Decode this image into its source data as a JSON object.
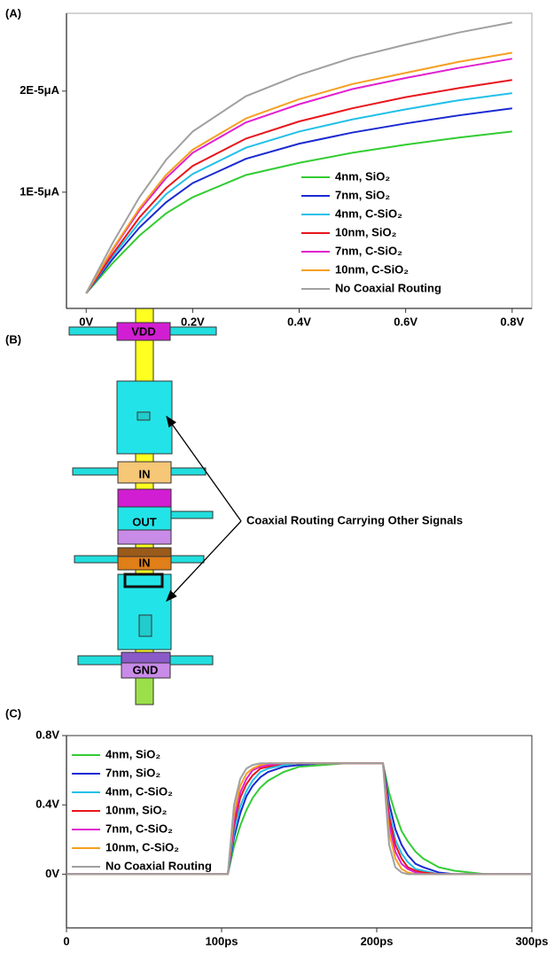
{
  "panel_labels": [
    "(A)",
    "(B)",
    "(C)"
  ],
  "chart_data": [
    {
      "type": "line",
      "legend": "lower right",
      "x": [
        0,
        0.05,
        0.1,
        0.15,
        0.2,
        0.3,
        0.4,
        0.5,
        0.6,
        0.7,
        0.8
      ],
      "xlim": [
        -0.037,
        0.837
      ],
      "xticks": [
        {
          "value": 0,
          "label": "0V"
        },
        {
          "value": 0.2,
          "label": "0.2V"
        },
        {
          "value": 0.4,
          "label": "0.4V"
        },
        {
          "value": 0.6,
          "label": "0.6V"
        },
        {
          "value": 0.8,
          "label": "0.8V"
        }
      ],
      "ylim": [
        -1.5e-06,
        2.77e-05
      ],
      "yticks": [
        {
          "value": 1e-05,
          "label": "1E-5μA"
        },
        {
          "value": 2e-05,
          "label": "2E-5μA"
        }
      ],
      "series": [
        {
          "name": "4nm, SiO₂",
          "color": "#33cc33",
          "values": [
            0,
            3e-06,
            5.7e-06,
            7.9e-06,
            9.5e-06,
            1.17e-05,
            1.29e-05,
            1.39e-05,
            1.47e-05,
            1.54e-05,
            1.6e-05
          ]
        },
        {
          "name": "7nm, SiO₂",
          "color": "#1a2ad0",
          "values": [
            0,
            3.4e-06,
            6.5e-06,
            9e-06,
            1.09e-05,
            1.33e-05,
            1.48e-05,
            1.59e-05,
            1.68e-05,
            1.76e-05,
            1.83e-05
          ]
        },
        {
          "name": "4nm, C-SiO₂",
          "color": "#22c0e8",
          "values": [
            0,
            3.7e-06,
            7e-06,
            9.8e-06,
            1.18e-05,
            1.44e-05,
            1.6e-05,
            1.72e-05,
            1.82e-05,
            1.91e-05,
            1.98e-05
          ]
        },
        {
          "name": "10nm, SiO₂",
          "color": "#e8161c",
          "values": [
            0,
            3.9e-06,
            7.5e-06,
            1.04e-05,
            1.26e-05,
            1.53e-05,
            1.7e-05,
            1.83e-05,
            1.94e-05,
            2.03e-05,
            2.11e-05
          ]
        },
        {
          "name": "7nm, C-SiO₂",
          "color": "#e020d0",
          "values": [
            0,
            4.3e-06,
            8.2e-06,
            1.14e-05,
            1.39e-05,
            1.69e-05,
            1.87e-05,
            2.02e-05,
            2.13e-05,
            2.23e-05,
            2.32e-05
          ]
        },
        {
          "name": "10nm, C-SiO₂",
          "color": "#f5a020",
          "values": [
            0,
            4.4e-06,
            8.4e-06,
            1.17e-05,
            1.42e-05,
            1.73e-05,
            1.92e-05,
            2.07e-05,
            2.18e-05,
            2.29e-05,
            2.38e-05
          ]
        },
        {
          "name": "No Coaxial Routing",
          "color": "#a0a0a0",
          "values": [
            0,
            5e-06,
            9.5e-06,
            1.32e-05,
            1.6e-05,
            1.95e-05,
            2.16e-05,
            2.33e-05,
            2.46e-05,
            2.58e-05,
            2.68e-05
          ]
        }
      ]
    },
    {
      "type": "line",
      "legend": "upper left",
      "x": [
        0,
        104,
        108,
        112,
        116,
        120,
        125,
        130,
        140,
        150,
        165,
        180,
        204,
        208,
        212,
        216,
        220,
        225,
        230,
        240,
        250,
        270,
        300
      ],
      "xlim": [
        0,
        300
      ],
      "xticks": [
        0,
        {
          "value": 100,
          "label": "100ps"
        },
        {
          "value": 200,
          "label": "200ps"
        },
        {
          "value": 300,
          "label": "300ps"
        }
      ],
      "ylim": [
        -0.31,
        0.8
      ],
      "yticks": [
        {
          "value": 0,
          "label": "0V"
        },
        {
          "value": 0.4,
          "label": "0.4V"
        },
        {
          "value": 0.8,
          "label": "0.8V"
        }
      ],
      "series": [
        {
          "name": "4nm, SiO₂",
          "color": "#33cc33",
          "values": [
            0,
            0,
            0.16,
            0.28,
            0.37,
            0.44,
            0.5,
            0.54,
            0.59,
            0.62,
            0.63,
            0.64,
            0.64,
            0.47,
            0.35,
            0.25,
            0.19,
            0.13,
            0.09,
            0.04,
            0.02,
            0,
            0
          ]
        },
        {
          "name": "7nm, SiO₂",
          "color": "#1a2ad0",
          "values": [
            0,
            0,
            0.21,
            0.35,
            0.45,
            0.51,
            0.56,
            0.59,
            0.62,
            0.63,
            0.64,
            0.64,
            0.64,
            0.41,
            0.26,
            0.17,
            0.11,
            0.06,
            0.04,
            0.01,
            0,
            0,
            0
          ]
        },
        {
          "name": "4nm, C-SiO₂",
          "color": "#22c0e8",
          "values": [
            0,
            0,
            0.24,
            0.39,
            0.48,
            0.54,
            0.59,
            0.61,
            0.63,
            0.64,
            0.64,
            0.64,
            0.64,
            0.36,
            0.2,
            0.12,
            0.07,
            0.03,
            0.02,
            0,
            0,
            0,
            0
          ]
        },
        {
          "name": "10nm, SiO₂",
          "color": "#e8161c",
          "values": [
            0,
            0,
            0.28,
            0.44,
            0.52,
            0.57,
            0.61,
            0.62,
            0.64,
            0.64,
            0.64,
            0.64,
            0.64,
            0.33,
            0.17,
            0.09,
            0.04,
            0.02,
            0.01,
            0,
            0,
            0,
            0
          ]
        },
        {
          "name": "7nm, C-SiO₂",
          "color": "#e020d0",
          "values": [
            0,
            0,
            0.31,
            0.47,
            0.55,
            0.6,
            0.62,
            0.63,
            0.64,
            0.64,
            0.64,
            0.64,
            0.64,
            0.29,
            0.13,
            0.06,
            0.03,
            0.01,
            0,
            0,
            0,
            0,
            0
          ]
        },
        {
          "name": "10nm, C-SiO₂",
          "color": "#f5a020",
          "values": [
            0,
            0,
            0.35,
            0.51,
            0.58,
            0.61,
            0.63,
            0.64,
            0.64,
            0.64,
            0.64,
            0.64,
            0.64,
            0.24,
            0.09,
            0.03,
            0.01,
            0,
            0,
            0,
            0,
            0,
            0
          ]
        },
        {
          "name": "No Coaxial Routing",
          "color": "#a0a0a0",
          "values": [
            0,
            0,
            0.4,
            0.55,
            0.61,
            0.63,
            0.64,
            0.64,
            0.64,
            0.64,
            0.64,
            0.64,
            0.64,
            0.17,
            0.04,
            0.01,
            0,
            0,
            0,
            0,
            0,
            0,
            0
          ]
        }
      ]
    }
  ],
  "diagram": {
    "blocks": [
      "VDD",
      "IN",
      "OUT",
      "IN",
      "GND"
    ],
    "annotation": "Coaxial Routing Carrying Other Signals"
  }
}
